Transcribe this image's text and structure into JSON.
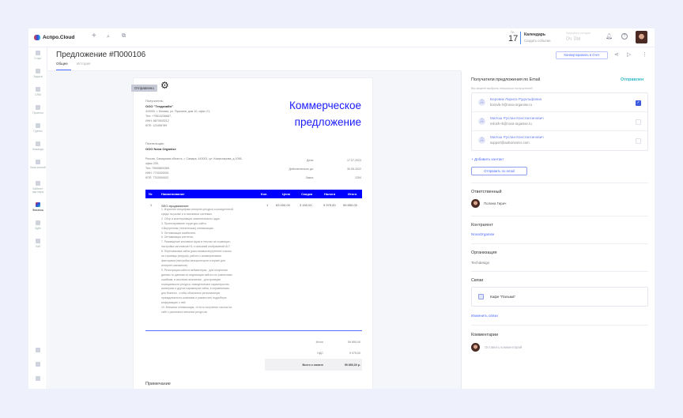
{
  "app": {
    "logo_text": "Аспро.Cloud"
  },
  "topbar": {
    "day_name": "Пн",
    "day_num": "17",
    "calendar_title": "Календарь",
    "calendar_sub": "Создать событие",
    "load_label": "Загружено сегодня",
    "load_value": "0ч 0м"
  },
  "sidebar": {
    "items": [
      {
        "label": "Старт"
      },
      {
        "label": "Задачи"
      },
      {
        "label": "CRM"
      },
      {
        "label": "Проекты"
      },
      {
        "label": "Группы"
      },
      {
        "label": "Команда"
      },
      {
        "label": "База знаний"
      },
      {
        "label": "Кабинет партнера"
      },
      {
        "label": "Финансы",
        "active": true
      },
      {
        "label": "Agile"
      },
      {
        "label": "Хаб"
      }
    ]
  },
  "page": {
    "title": "Предложение #П000106",
    "tabs": [
      {
        "label": "Общее",
        "active": true
      },
      {
        "label": "История"
      }
    ],
    "convert_button": "Конвертировать в Счет"
  },
  "document": {
    "status_tag": "Отправлено",
    "recipient_label": "Получатель:",
    "recipient_name": "ООО \"Техдизайн\"",
    "recipient_lines": [
      "410000, г. Москва, ул. Пушкина, дом 10, офис 21,",
      "Тел: +79514236667,",
      "ИНН: 8670543212",
      "КПП: 123456789"
    ],
    "title_line1": "Коммерческое",
    "title_line2": "предложение",
    "payer_label": "Плательщик:",
    "payer_name": "ООО Nova Organise",
    "payer_lines": [
      "Россия, Самарская область, г. Самара, 443001, ул. Комиссарова, д 1056,",
      "офис 205,",
      "Тел: 79005800365",
      "ИНН: 7702000001",
      "КПП: 7702000002"
    ],
    "meta": [
      {
        "label": "Дата:",
        "value": "17.07.2023"
      },
      {
        "label": "Действительно до:",
        "value": "30.05.2022"
      },
      {
        "label": "Заказ:",
        "value": "1254"
      }
    ],
    "table": {
      "headers": [
        "№",
        "Наименование",
        "Кол.",
        "Цена",
        "Скидка",
        "Налоги",
        "Итого"
      ],
      "rows": [
        {
          "num": "1",
          "name": "SEO-продвижение",
          "qty": "1",
          "price": "63 000,00",
          "discount": "3 150,00",
          "tax": "9 975,00",
          "total": "59 850,00",
          "description": [
            "1. Изучение специфики интернет-ресурса и конкурентной",
            "среды на рынке и в поисковых системах.",
            "2. Сбор и кластеризация семантического ядра.",
            "3. Проектирование структуры сайта.",
            "4.Внутренняя (техническая) оптимизация.",
            "5. Оптимизация юзабилити.",
            "6. Оптимизация контента.",
            "7. Размещение ключевых фраз в текстах на страницах;",
            "настройка заголовков H1 и описаний изображений ALT.",
            "8. Перелинковка сайта (расстановка внутренних ссылок",
            "на страницы ресурса), работа с коммерческими",
            "факторами (настройка калькуляторов и корзин для",
            "интернет-магазинов).",
            "9. Регистрация сайта  в вебмастерах - для получения",
            "данных по данным по индексации сайта и по различным",
            "ошибкам, в системах аналитики - для проверки",
            "посещаемости ресурса, поведенческих характеристик,",
            "конверсии и других параметров сайта, в справочниках",
            "для бизнеса - чтобы обозначить региональную",
            "принадлежность компании и разместить подробную",
            "информацию о ней.",
            "10. Внешняя оптимизация, то есть получение ссылок на",
            "сайт с различных внешних ресурсов."
          ]
        }
      ]
    },
    "totals": [
      {
        "label": "Итого",
        "value": "59 850,00"
      },
      {
        "label": "НДС",
        "value": "9 975,00"
      }
    ],
    "grand_total_label": "Всего к оплате",
    "grand_total_value": "59 850,00 р.",
    "note_label": "Примечание"
  },
  "right": {
    "email_title": "Получатели предложения по Email",
    "email_status": "Отправлен",
    "email_hint": "Вы можете выбрать несколько получателей",
    "contacts": [
      {
        "name": "Боровик Лариса Рудольфовна",
        "email": "borovik-lr@nova-organise.ru",
        "checked": true
      },
      {
        "name": "Милош Руслан Константинович",
        "email": "milosh-rk@nova-organise.ru",
        "checked": false
      },
      {
        "name": "Милош Руслан Константинович",
        "email": "support@aahoinvoice.com",
        "checked": false
      }
    ],
    "add_contact": "+ Добавить контакт",
    "send_button": "Отправить по email",
    "responsible_title": "Ответственный",
    "responsible_name": "Полина Гирич",
    "counterparty_title": "Контрагент",
    "counterparty_value": "NovaOrganise",
    "org_title": "Организация",
    "org_value": "Techdesign",
    "links_title": "Связи",
    "link_item": "Кафе \"Пальма\"",
    "edit_links": "Изменить связи",
    "comments_title": "Комментарии",
    "comment_placeholder": "Оставить комментарий"
  },
  "colors": {
    "accent": "#4d6bfe",
    "doc_blue": "#0000ff",
    "status_teal": "#30b8c8"
  }
}
